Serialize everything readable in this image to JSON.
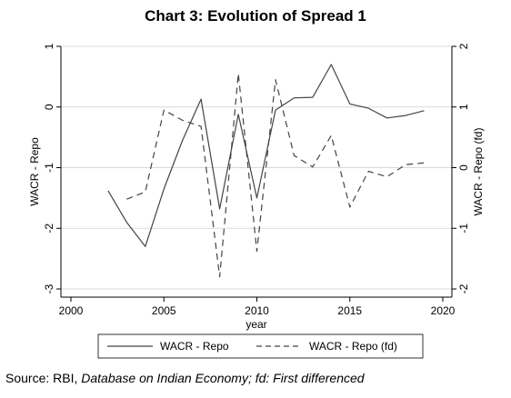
{
  "chart_data": {
    "type": "line",
    "title": "Chart 3: Evolution of Spread 1",
    "xlabel": "year",
    "ylabel_left": "WACR - Repo",
    "ylabel_right": "WACR - Repo (fd)",
    "xlim": [
      2000,
      2020
    ],
    "ylim_left": [
      -3,
      1
    ],
    "ylim_right": [
      -2,
      2
    ],
    "x_ticks": [
      2000,
      2005,
      2010,
      2015,
      2020
    ],
    "y_ticks_left": [
      -3,
      -2,
      -1,
      0,
      1
    ],
    "y_ticks_right": [
      -2,
      -1,
      0,
      1,
      2
    ],
    "grid": true,
    "legend_position": "bottom",
    "series": [
      {
        "name": "WACR - Repo",
        "axis": "left",
        "style": "solid",
        "x": [
          2002,
          2003,
          2004,
          2005,
          2006,
          2007,
          2008,
          2009,
          2010,
          2011,
          2012,
          2013,
          2014,
          2015,
          2016,
          2017,
          2018,
          2019
        ],
        "y": [
          -1.38,
          -1.9,
          -2.3,
          -1.35,
          -0.55,
          0.13,
          -1.68,
          -0.12,
          -1.5,
          -0.05,
          0.15,
          0.16,
          0.7,
          0.05,
          -0.02,
          -0.18,
          -0.14,
          -0.06
        ]
      },
      {
        "name": "WACR - Repo (fd)",
        "axis": "right",
        "style": "dashed",
        "x": [
          2003,
          2004,
          2005,
          2006,
          2007,
          2008,
          2009,
          2010,
          2011,
          2012,
          2013,
          2014,
          2015,
          2016,
          2017,
          2018,
          2019
        ],
        "y": [
          -0.52,
          -0.4,
          0.95,
          0.78,
          0.68,
          -1.8,
          1.55,
          -1.38,
          1.45,
          0.2,
          0.01,
          0.53,
          -0.65,
          -0.06,
          -0.15,
          0.05,
          0.08
        ]
      }
    ]
  },
  "source": {
    "prefix": "Source: RBI, ",
    "italic": "Database on Indian Economy; fd: First differenced"
  },
  "colors": {
    "line": "#444444",
    "grid": "#d9d9d9",
    "axis": "#000000"
  }
}
